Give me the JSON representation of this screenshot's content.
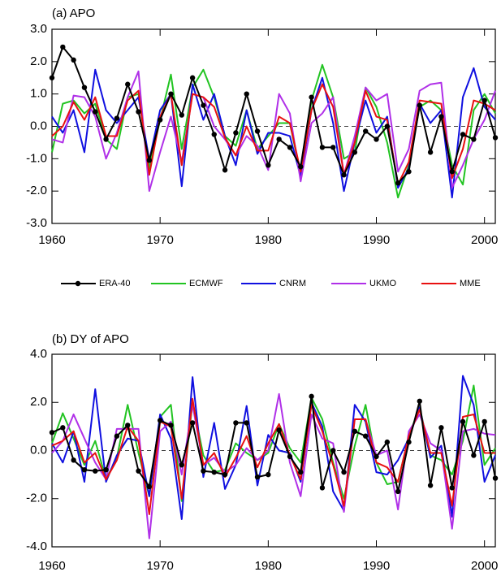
{
  "chart_data": [
    {
      "type": "line",
      "title": "(a) APO",
      "x": [
        1960,
        1961,
        1962,
        1963,
        1964,
        1965,
        1966,
        1967,
        1968,
        1969,
        1970,
        1971,
        1972,
        1973,
        1974,
        1975,
        1976,
        1977,
        1978,
        1979,
        1980,
        1981,
        1982,
        1983,
        1984,
        1985,
        1986,
        1987,
        1988,
        1989,
        1990,
        1991,
        1992,
        1993,
        1994,
        1995,
        1996,
        1997,
        1998,
        1999,
        2000,
        2001
      ],
      "xlim": [
        1960,
        2001
      ],
      "xticks": [
        1960,
        1970,
        1980,
        1990,
        2000
      ],
      "ylim": [
        -3,
        3
      ],
      "yticks": [
        {
          "value": 3,
          "label": "3.0"
        },
        {
          "value": 2,
          "label": "2.0"
        },
        {
          "value": 1,
          "label": "1.0"
        },
        {
          "value": 0,
          "label": "0.0"
        },
        {
          "value": -1,
          "label": "-1.0"
        },
        {
          "value": -2,
          "label": "-2.0"
        },
        {
          "value": -3,
          "label": "-3.0"
        }
      ],
      "legend": true,
      "series": [
        {
          "name": "ERA-40",
          "color": "#000000",
          "marker": "circle",
          "values": [
            1.5,
            2.45,
            2.05,
            1.2,
            0.45,
            -0.4,
            0.25,
            1.3,
            0.45,
            -1.05,
            0.2,
            1.0,
            0.35,
            1.5,
            0.65,
            -0.25,
            -1.35,
            -0.2,
            1.0,
            -0.15,
            -1.2,
            -0.4,
            -0.65,
            -1.25,
            0.9,
            -0.65,
            -0.65,
            -1.5,
            -0.8,
            -0.15,
            -0.4,
            0.0,
            -1.75,
            -1.4,
            0.65,
            -0.8,
            0.3,
            -1.4,
            -0.25,
            -0.4,
            0.8,
            -0.35
          ]
        },
        {
          "name": "ECMWF",
          "color": "#22c422",
          "values": [
            -0.8,
            0.7,
            0.8,
            0.4,
            0.7,
            -0.4,
            -0.7,
            0.9,
            1.0,
            -1.3,
            0.2,
            1.6,
            -0.7,
            1.2,
            1.75,
            0.9,
            -0.3,
            -0.6,
            0.5,
            -0.7,
            -0.3,
            0.1,
            0.1,
            -1.5,
            0.8,
            1.9,
            0.9,
            -1.0,
            -0.8,
            1.2,
            0.6,
            -0.5,
            -2.2,
            -1.2,
            0.6,
            0.8,
            0.5,
            -1.2,
            -1.8,
            0.5,
            1.0,
            0.4
          ]
        },
        {
          "name": "CNRM",
          "color": "#1010e0",
          "values": [
            0.3,
            -0.2,
            0.5,
            -0.8,
            1.75,
            0.5,
            0.1,
            0.5,
            0.9,
            -1.05,
            0.5,
            1.0,
            -1.85,
            1.3,
            0.2,
            1.0,
            -0.3,
            -1.2,
            0.5,
            -0.85,
            -0.2,
            -0.2,
            -0.3,
            -1.55,
            0.5,
            1.5,
            0.1,
            -2.0,
            -0.5,
            0.8,
            -0.2,
            0.3,
            -1.9,
            -1.3,
            0.7,
            0.1,
            0.5,
            -2.2,
            0.9,
            1.8,
            0.6,
            0.2
          ]
        },
        {
          "name": "UKMO",
          "color": "#b030e8",
          "values": [
            -0.4,
            -0.5,
            0.95,
            0.9,
            0.3,
            -1.0,
            -0.2,
            0.9,
            1.7,
            -2.0,
            -0.8,
            0.3,
            -1.1,
            1.0,
            0.9,
            0.0,
            -0.4,
            -0.9,
            -0.3,
            -0.6,
            -1.35,
            1.0,
            0.4,
            -1.7,
            0.1,
            0.4,
            0.9,
            -1.5,
            -0.3,
            1.2,
            0.8,
            1.0,
            -1.4,
            -0.7,
            1.1,
            1.3,
            1.35,
            -1.9,
            -1.2,
            -0.4,
            0.2,
            1.1
          ]
        },
        {
          "name": "MME",
          "color": "#e81010",
          "values": [
            -0.3,
            0.0,
            0.75,
            0.2,
            0.9,
            -0.3,
            -0.3,
            0.8,
            1.1,
            -1.5,
            0.3,
            1.0,
            -1.2,
            1.0,
            0.9,
            0.6,
            -0.35,
            -0.9,
            0.0,
            -0.75,
            -0.75,
            0.3,
            0.1,
            -1.4,
            0.5,
            1.3,
            0.6,
            -1.5,
            -0.5,
            1.1,
            0.3,
            0.2,
            -1.8,
            -1.1,
            0.8,
            0.75,
            0.7,
            -1.6,
            -0.7,
            0.8,
            0.7,
            0.5
          ]
        }
      ]
    },
    {
      "type": "line",
      "title": "(b) DY of APO",
      "x": [
        1960,
        1961,
        1962,
        1963,
        1964,
        1965,
        1966,
        1967,
        1968,
        1969,
        1970,
        1971,
        1972,
        1973,
        1974,
        1975,
        1976,
        1977,
        1978,
        1979,
        1980,
        1981,
        1982,
        1983,
        1984,
        1985,
        1986,
        1987,
        1988,
        1989,
        1990,
        1991,
        1992,
        1993,
        1994,
        1995,
        1996,
        1997,
        1998,
        1999,
        2000,
        2001
      ],
      "xlim": [
        1960,
        2001
      ],
      "xticks": [
        1960,
        1970,
        1980,
        1990,
        2000
      ],
      "ylim": [
        -4,
        4
      ],
      "yticks": [
        {
          "value": 4,
          "label": "4.0"
        },
        {
          "value": 2,
          "label": "2.0"
        },
        {
          "value": 0,
          "label": "0.0"
        },
        {
          "value": -2,
          "label": "-2.0"
        },
        {
          "value": -4,
          "label": "-4.0"
        }
      ],
      "legend": false,
      "series": [
        {
          "name": "ERA-40",
          "color": "#000000",
          "marker": "circle",
          "values": [
            0.75,
            0.95,
            -0.4,
            -0.8,
            -0.85,
            -0.8,
            0.6,
            1.05,
            -0.85,
            -1.5,
            1.25,
            1.05,
            -0.6,
            1.15,
            -0.85,
            -0.9,
            -1.0,
            1.15,
            1.15,
            -1.1,
            -1.0,
            0.85,
            -0.25,
            -0.9,
            2.25,
            -1.55,
            0.0,
            -0.9,
            0.8,
            0.6,
            -0.25,
            0.35,
            -1.7,
            0.35,
            2.05,
            -1.45,
            0.95,
            -1.55,
            1.2,
            -0.2,
            1.2,
            -1.15
          ]
        },
        {
          "name": "ECMWF",
          "color": "#22c422",
          "values": [
            0.3,
            1.55,
            0.5,
            -0.6,
            0.4,
            -1.2,
            -0.3,
            1.9,
            -0.1,
            -1.9,
            1.4,
            1.9,
            -2.1,
            2.0,
            -0.2,
            -0.9,
            -0.8,
            0.3,
            -0.1,
            -0.4,
            -0.1,
            1.1,
            0.1,
            -0.5,
            2.2,
            1.3,
            -0.5,
            -2.0,
            0.2,
            1.9,
            -0.5,
            -1.4,
            -1.3,
            0.6,
            1.8,
            -0.2,
            -0.4,
            -1.0,
            0.4,
            2.7,
            -0.6,
            0.1
          ]
        },
        {
          "name": "CNRM",
          "color": "#1010e0",
          "values": [
            0.3,
            -0.5,
            0.8,
            -1.3,
            2.55,
            -1.3,
            -0.2,
            0.5,
            0.4,
            -1.9,
            1.5,
            0.5,
            -2.85,
            3.05,
            -1.1,
            1.15,
            -1.6,
            -0.6,
            1.85,
            -1.45,
            0.65,
            0.0,
            -0.1,
            -1.3,
            2.0,
            1.0,
            -1.7,
            -2.5,
            1.9,
            1.2,
            -0.9,
            -1.0,
            -0.4,
            0.5,
            1.8,
            -0.3,
            0.2,
            -2.75,
            3.1,
            1.9,
            -1.3,
            -0.2
          ]
        },
        {
          "name": "UKMO",
          "color": "#b030e8",
          "values": [
            -0.1,
            0.4,
            1.5,
            0.5,
            -0.5,
            -1.2,
            0.9,
            0.9,
            0.9,
            -3.65,
            0.8,
            1.2,
            -1.0,
            1.9,
            -0.6,
            -0.3,
            -0.9,
            -0.6,
            0.1,
            -0.4,
            0.0,
            2.35,
            -0.5,
            -1.9,
            1.5,
            0.5,
            0.3,
            -2.55,
            1.3,
            1.3,
            -0.2,
            0.0,
            -2.45,
            0.8,
            1.5,
            0.3,
            0.0,
            -3.25,
            0.8,
            0.9,
            0.7,
            0.65
          ]
        },
        {
          "name": "MME",
          "color": "#e81010",
          "values": [
            0.2,
            0.4,
            0.8,
            -0.5,
            -0.1,
            -1.2,
            -0.4,
            1.0,
            0.4,
            -2.65,
            1.2,
            1.0,
            -2.0,
            2.15,
            -0.6,
            -0.1,
            -1.1,
            -0.3,
            0.6,
            -0.7,
            0.3,
            1.1,
            -0.2,
            -1.2,
            1.9,
            0.8,
            -0.6,
            -2.3,
            1.3,
            1.3,
            -0.5,
            -0.7,
            -1.3,
            0.6,
            1.7,
            -0.1,
            -0.1,
            -2.3,
            1.4,
            1.5,
            -0.1,
            -0.1
          ]
        }
      ]
    }
  ]
}
